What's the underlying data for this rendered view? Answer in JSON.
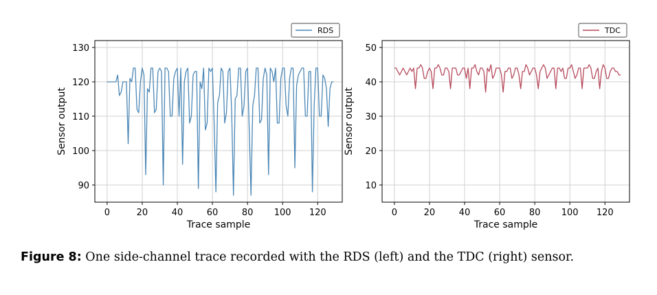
{
  "caption": {
    "label": "Figure 8:",
    "text": "One side-channel trace recorded with the RDS (left) and the TDC (right) sensor."
  },
  "chart_data": [
    {
      "type": "line",
      "xlabel": "Trace sample",
      "ylabel": "Sensor output",
      "xlim": [
        -7,
        134
      ],
      "ylim": [
        85,
        132
      ],
      "xticks": [
        0,
        20,
        40,
        60,
        80,
        100,
        120
      ],
      "yticks": [
        90,
        100,
        110,
        120,
        130
      ],
      "grid": true,
      "legend": "top-right",
      "series": [
        {
          "name": "RDS",
          "color": "#4a86b5",
          "x_start": 0,
          "values": [
            120,
            120,
            120,
            120,
            120,
            120,
            122,
            116,
            117,
            120,
            120,
            120,
            102,
            121,
            120,
            124,
            124,
            112,
            111,
            120,
            124,
            122,
            93,
            118,
            117,
            124,
            124,
            111,
            112,
            123,
            124,
            123,
            90,
            124,
            124,
            123,
            110,
            110,
            121,
            123,
            124,
            110,
            124,
            96,
            120,
            123,
            124,
            108,
            110,
            122,
            123,
            123,
            89,
            120,
            118,
            124,
            106,
            108,
            124,
            123,
            124,
            108,
            88,
            114,
            116,
            124,
            123,
            108,
            111,
            123,
            124,
            111,
            87,
            115,
            116,
            124,
            124,
            110,
            113,
            123,
            124,
            106,
            87,
            113,
            116,
            124,
            124,
            108,
            109,
            121,
            124,
            122,
            93,
            124,
            123,
            120,
            124,
            108,
            108,
            121,
            124,
            124,
            113,
            110,
            121,
            124,
            124,
            95,
            119,
            122,
            123,
            124,
            124,
            110,
            110,
            123,
            123,
            88,
            113,
            124,
            124,
            110,
            110,
            122,
            121,
            118,
            107,
            118,
            120,
            120
          ]
        },
        {
          "name": "TDC",
          "color": "#b5485a",
          "x_start": 0,
          "values": [
            44,
            44,
            43,
            42,
            43,
            44,
            43,
            42,
            43,
            44,
            43,
            44,
            38,
            44,
            44,
            45,
            44,
            41,
            41,
            43,
            44,
            43,
            38,
            44,
            44,
            45,
            44,
            42,
            42,
            44,
            44,
            43,
            38,
            44,
            44,
            44,
            42,
            42,
            43,
            44,
            44,
            41,
            44,
            38,
            44,
            44,
            45,
            43,
            42,
            44,
            44,
            43,
            37,
            44,
            43,
            45,
            41,
            42,
            44,
            44,
            44,
            42,
            37,
            43,
            43,
            44,
            44,
            41,
            42,
            44,
            44,
            42,
            38,
            43,
            43,
            45,
            44,
            42,
            43,
            44,
            44,
            42,
            38,
            43,
            44,
            45,
            44,
            41,
            42,
            43,
            44,
            44,
            38,
            44,
            44,
            43,
            44,
            41,
            41,
            44,
            44,
            45,
            43,
            41,
            42,
            44,
            44,
            38,
            44,
            44,
            44,
            45,
            44,
            41,
            41,
            43,
            44,
            38,
            43,
            45,
            44,
            41,
            41,
            43,
            44,
            44,
            43,
            43,
            42,
            42
          ]
        }
      ]
    },
    {
      "type": "line",
      "xlabel": "Trace sample",
      "ylabel": "Sensor output",
      "xlim": [
        -7,
        134
      ],
      "ylim": [
        5,
        52
      ],
      "xticks": [
        0,
        20,
        40,
        60,
        80,
        100,
        120
      ],
      "yticks": [
        10,
        20,
        30,
        40,
        50
      ],
      "grid": true,
      "legend": "top-right"
    }
  ]
}
